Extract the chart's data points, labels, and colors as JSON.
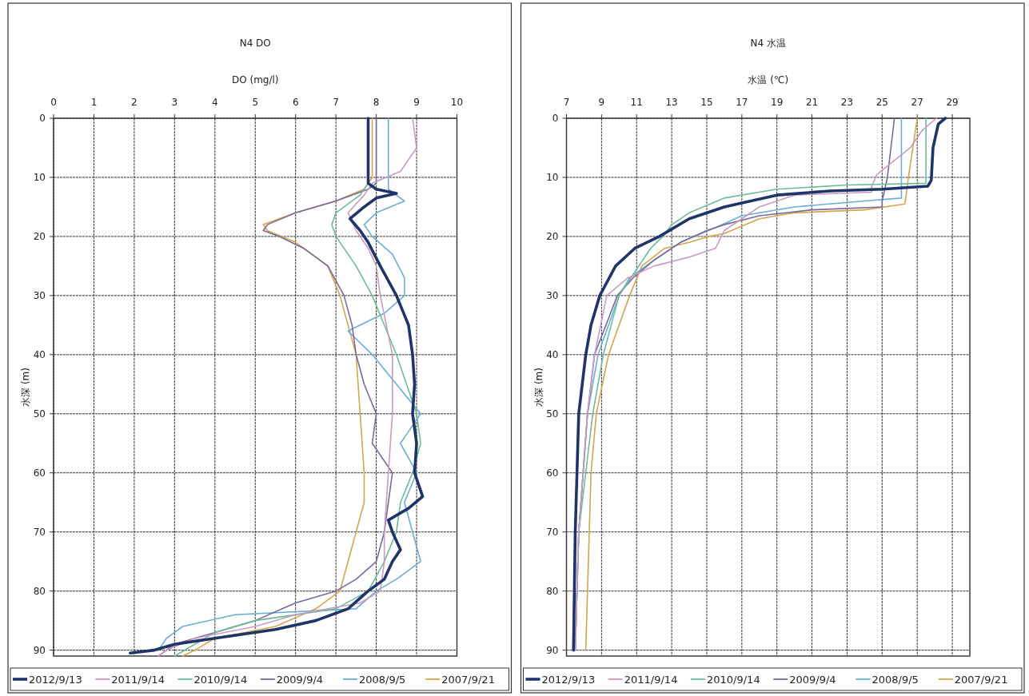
{
  "chart_data": [
    {
      "type": "line",
      "title": "N4 DO",
      "xlabel": "DO (mg/l)",
      "ylabel": "水深 (m)",
      "xlim": [
        0,
        10
      ],
      "xticks": [
        0,
        1,
        2,
        3,
        4,
        5,
        6,
        7,
        8,
        9,
        10
      ],
      "ylim": [
        91,
        0
      ],
      "yticks": [
        0,
        10,
        20,
        30,
        40,
        50,
        60,
        70,
        80,
        90
      ],
      "grid": true,
      "legend": "bottom",
      "series": [
        {
          "name": "2012/9/13",
          "color": "#1f3468",
          "x": [
            7.8,
            7.8,
            7.8,
            8.0,
            8.5,
            8.0,
            7.7,
            7.35,
            7.6,
            7.8,
            8.1,
            8.5,
            8.8,
            8.9,
            8.95,
            8.9,
            9.0,
            8.95,
            9.15,
            8.8,
            8.3,
            8.4,
            8.6,
            8.4,
            8.2,
            7.8,
            7.3,
            6.5,
            5.5,
            4.0,
            3.0,
            2.5,
            1.9
          ],
          "values": [
            0,
            5,
            11,
            12,
            12.7,
            13.5,
            15,
            17,
            19,
            21,
            25,
            30,
            35,
            40,
            45,
            50,
            55,
            60,
            64,
            66,
            68,
            70,
            73,
            75,
            78,
            80,
            83,
            85,
            86.5,
            88,
            89,
            90,
            90.5
          ]
        },
        {
          "name": "2011/9/14",
          "color": "#c79bc4",
          "x": [
            8.9,
            9.0,
            8.6,
            7.9,
            7.7,
            7.3,
            7.5,
            7.8,
            8.0,
            8.1,
            8.4,
            8.4,
            8.3,
            8.2,
            8.2,
            8.1,
            7.6,
            6.0,
            5.0,
            3.5,
            2.8,
            2.6
          ],
          "values": [
            0,
            5,
            9,
            11,
            13,
            16,
            19,
            22,
            25,
            30,
            40,
            50,
            60,
            70,
            75,
            80,
            82,
            84,
            86,
            88,
            90,
            91
          ]
        },
        {
          "name": "2010/9/14",
          "color": "#6dbb9a",
          "x": [
            7.8,
            7.8,
            7.6,
            7.0,
            6.9,
            7.0,
            7.5,
            7.9,
            8.5,
            9.0,
            9.1,
            8.9,
            8.6,
            8.5,
            8.2,
            7.8,
            7.0,
            5.0,
            4.0,
            3.5,
            3.0
          ],
          "values": [
            0,
            11,
            13,
            16,
            18,
            20,
            25,
            30,
            40,
            50,
            55,
            60,
            65,
            70,
            75,
            80,
            83,
            85,
            87,
            89,
            91
          ]
        },
        {
          "name": "2009/9/4",
          "color": "#7a6a9c",
          "x": [
            8.0,
            8.0,
            7.8,
            7.0,
            6.0,
            5.3,
            5.2,
            5.6,
            6.2,
            6.8,
            7.2,
            7.4,
            7.5,
            7.7,
            8.0,
            7.9,
            8.4,
            8.3,
            8.2,
            8.0,
            7.5,
            7.0,
            6.0,
            5.0,
            4.0,
            3.0,
            2.6
          ],
          "values": [
            0,
            11,
            12,
            14,
            16,
            18,
            19,
            20,
            22,
            25,
            30,
            35,
            40,
            45,
            50,
            55,
            60,
            65,
            70,
            75,
            78,
            80,
            82,
            85,
            87,
            89,
            91
          ]
        },
        {
          "name": "2008/9/5",
          "color": "#6aaed6",
          "x": [
            8.3,
            8.3,
            8.7,
            8.0,
            7.7,
            7.9,
            8.4,
            8.7,
            8.7,
            8.2,
            7.3,
            7.9,
            8.5,
            9.1,
            8.6,
            9.0,
            8.7,
            8.9,
            9.1,
            8.5,
            8.0,
            7.5,
            4.5,
            3.2,
            2.8,
            2.6
          ],
          "values": [
            0,
            12,
            14,
            16,
            18,
            20,
            23,
            27,
            30,
            33,
            36,
            40,
            45,
            50,
            55,
            60,
            65,
            70,
            75,
            78,
            80,
            83,
            84,
            86,
            88,
            90
          ]
        },
        {
          "name": "2007/9/21",
          "color": "#d4a64a",
          "x": [
            7.9,
            7.9,
            7.7,
            7.0,
            6.0,
            5.2,
            5.3,
            6.0,
            6.8,
            7.1,
            7.3,
            7.5,
            7.6,
            7.7,
            7.7,
            7.5,
            7.3,
            7.1,
            6.5,
            5.5,
            4.0,
            3.5,
            3.2
          ],
          "values": [
            0,
            10,
            12,
            14,
            16,
            18,
            19,
            21,
            25,
            30,
            35,
            40,
            50,
            60,
            65,
            70,
            75,
            80,
            83,
            86,
            88,
            90,
            91
          ]
        }
      ]
    },
    {
      "type": "line",
      "title": "N4 水温",
      "xlabel": "水温 (℃)",
      "ylabel": "水深 (m)",
      "xlim": [
        7,
        30
      ],
      "xticks": [
        7,
        9,
        11,
        13,
        15,
        17,
        19,
        21,
        23,
        25,
        27,
        29
      ],
      "ylim": [
        91,
        0
      ],
      "yticks": [
        0,
        10,
        20,
        30,
        40,
        50,
        60,
        70,
        80,
        90
      ],
      "grid": true,
      "legend": "bottom",
      "series": [
        {
          "name": "2012/9/13",
          "color": "#1f3468",
          "x": [
            28.6,
            28.2,
            27.9,
            27.8,
            27.6,
            25.0,
            22.0,
            19.0,
            16.0,
            14.0,
            12.3,
            10.9,
            9.8,
            8.9,
            8.4,
            8.1,
            7.7,
            7.6,
            7.5,
            7.45,
            7.4
          ],
          "values": [
            0,
            1,
            5,
            10.5,
            11.5,
            12,
            12.3,
            13,
            15,
            17,
            20,
            22,
            25,
            30,
            35,
            40,
            50,
            60,
            70,
            80,
            90
          ]
        },
        {
          "name": "2011/9/14",
          "color": "#c79bc4",
          "x": [
            28.1,
            27.3,
            26.6,
            24.7,
            24.4,
            24.4,
            20.0,
            18.0,
            17.0,
            16.0,
            15.5,
            14.0,
            12.0,
            10.5,
            9.3,
            8.6,
            8.2,
            7.7,
            7.5
          ],
          "values": [
            0,
            2,
            5,
            9.5,
            11.5,
            12.5,
            13,
            15,
            17,
            19,
            22,
            23.5,
            25,
            27,
            30,
            40,
            50,
            70,
            90
          ]
        },
        {
          "name": "2010/9/14",
          "color": "#6dbb9a",
          "x": [
            27.5,
            27.5,
            23.0,
            19.0,
            16.0,
            14.0,
            13.0,
            12.5,
            11.8,
            10.0,
            9.1,
            8.5,
            7.7,
            7.5
          ],
          "values": [
            0,
            11,
            11.3,
            12,
            13.5,
            16,
            18,
            20,
            22,
            30,
            40,
            50,
            70,
            90
          ]
        },
        {
          "name": "2009/9/4",
          "color": "#7a6a9c",
          "x": [
            25.7,
            25.3,
            25.0,
            25.0,
            21.0,
            18.0,
            16.0,
            15.0,
            13.5,
            12.0,
            10.8,
            9.9,
            8.6,
            8.2,
            7.7,
            7.5
          ],
          "values": [
            0,
            10,
            14,
            15,
            15.5,
            16.5,
            18,
            19,
            21,
            24,
            27,
            30,
            40,
            50,
            70,
            90
          ]
        },
        {
          "name": "2008/9/5",
          "color": "#6aaed6",
          "x": [
            26.1,
            26.1,
            24.0,
            20.0,
            17.0,
            15.5,
            13.5,
            12.0,
            10.6,
            10.0,
            8.8,
            8.2,
            7.7,
            7.5
          ],
          "values": [
            0,
            13.5,
            14,
            15,
            16.5,
            18.5,
            21,
            24,
            27,
            30,
            40,
            50,
            70,
            90
          ]
        },
        {
          "name": "2007/9/21",
          "color": "#d4a64a",
          "x": [
            27.0,
            26.5,
            26.3,
            24.0,
            20.0,
            18.0,
            16.0,
            15.1,
            14.0,
            12.6,
            11.3,
            10.6,
            9.4,
            8.7,
            8.4,
            8.3,
            8.2,
            8.1
          ],
          "values": [
            0,
            10,
            14.5,
            15.5,
            16,
            17,
            19.5,
            20,
            21,
            22,
            25,
            30,
            40,
            50,
            60,
            70,
            80,
            90
          ]
        }
      ]
    }
  ]
}
